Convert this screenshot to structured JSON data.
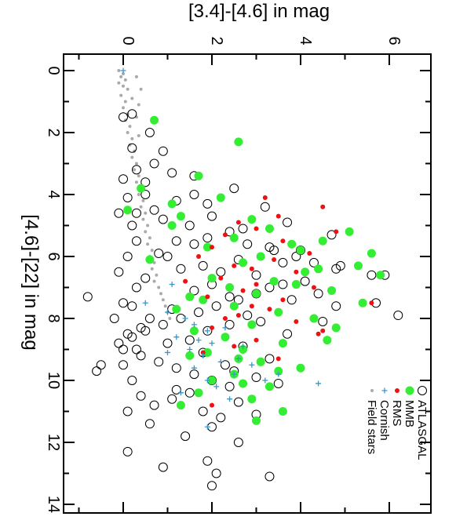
{
  "chart_data": {
    "type": "scatter",
    "title": "",
    "xlabel": "[4.6]-[22] in mag",
    "ylabel": "[3.4]-[4.6] in mag",
    "xlim": [
      -0.5,
      15
    ],
    "ylim": [
      -1.0,
      7.0
    ],
    "x_ticks": [
      "0",
      "2",
      "4",
      "6",
      "8",
      "10",
      "12",
      "14"
    ],
    "y_ticks": [
      "0",
      "2",
      "4",
      "6"
    ],
    "grid": false,
    "legend_position": "bottom-right",
    "orientation": "rotated 90 degrees clockwise",
    "legend": [
      {
        "label": "ATLASGAL",
        "marker": "open-circle",
        "color": "#000000"
      },
      {
        "label": "MMB",
        "marker": "filled-circle",
        "color": "#33ee33"
      },
      {
        "label": "RMS",
        "marker": "filled-dot",
        "color": "#ee1111"
      },
      {
        "label": "Cornish",
        "marker": "plus",
        "color": "#3399cc"
      },
      {
        "label": "Field stars",
        "marker": "small-dot",
        "color": "#aaaaaa"
      }
    ],
    "series": [
      {
        "name": "ATLASGAL",
        "marker": "open-circle",
        "color": "#000000",
        "points": [
          [
            1.4,
            0.2
          ],
          [
            2.0,
            0.6
          ],
          [
            2.6,
            0.9
          ],
          [
            3.0,
            0.7
          ],
          [
            3.3,
            1.1
          ],
          [
            3.6,
            0.5
          ],
          [
            4.0,
            1.6
          ],
          [
            4.3,
            1.9
          ],
          [
            4.6,
            0.3
          ],
          [
            4.8,
            0.9
          ],
          [
            5.0,
            1.5
          ],
          [
            5.2,
            2.4
          ],
          [
            5.4,
            1.9
          ],
          [
            5.6,
            2.8
          ],
          [
            5.8,
            3.4
          ],
          [
            6.0,
            3.9
          ],
          [
            6.2,
            4.3
          ],
          [
            6.4,
            4.8
          ],
          [
            6.6,
            5.6
          ],
          [
            6.8,
            4.1
          ],
          [
            7.0,
            3.3
          ],
          [
            7.2,
            3.0
          ],
          [
            7.4,
            2.6
          ],
          [
            7.6,
            2.1
          ],
          [
            7.8,
            1.7
          ],
          [
            8.0,
            1.3
          ],
          [
            8.2,
            0.9
          ],
          [
            8.4,
            0.5
          ],
          [
            8.6,
            0.2
          ],
          [
            8.8,
            -0.1
          ],
          [
            9.0,
            0.0
          ],
          [
            9.2,
            0.4
          ],
          [
            9.4,
            0.8
          ],
          [
            9.6,
            1.2
          ],
          [
            9.8,
            1.6
          ],
          [
            10.0,
            2.0
          ],
          [
            10.2,
            2.4
          ],
          [
            10.4,
            1.5
          ],
          [
            10.6,
            1.1
          ],
          [
            10.8,
            0.7
          ],
          [
            11.0,
            1.8
          ],
          [
            11.2,
            2.2
          ],
          [
            11.4,
            0.6
          ],
          [
            11.5,
            2.0
          ],
          [
            11.8,
            1.4
          ],
          [
            12.0,
            2.6
          ],
          [
            12.3,
            0.1
          ],
          [
            12.6,
            1.9
          ],
          [
            12.8,
            0.9
          ],
          [
            13.0,
            2.1
          ],
          [
            13.1,
            3.3
          ],
          [
            13.4,
            2.0
          ],
          [
            9.5,
            -0.5
          ],
          [
            9.7,
            -0.6
          ],
          [
            7.3,
            -0.8
          ],
          [
            4.6,
            -0.1
          ],
          [
            6.3,
            4.9
          ],
          [
            6.6,
            5.9
          ],
          [
            7.5,
            5.7
          ],
          [
            7.9,
            6.2
          ],
          [
            5.3,
            4.7
          ],
          [
            4.9,
            3.7
          ],
          [
            4.4,
            3.2
          ],
          [
            5.7,
            3.3
          ],
          [
            6.9,
            3.6
          ],
          [
            8.1,
            3.1
          ],
          [
            8.5,
            3.7
          ],
          [
            8.9,
            2.7
          ],
          [
            9.3,
            3.3
          ],
          [
            9.9,
            3.0
          ],
          [
            10.1,
            3.5
          ],
          [
            10.7,
            2.6
          ],
          [
            11.1,
            3.0
          ],
          [
            6.1,
            2.6
          ],
          [
            6.5,
            2.2
          ],
          [
            7.1,
            1.6
          ],
          [
            7.7,
            1.1
          ],
          [
            8.3,
            0.4
          ],
          [
            6.7,
            0.5
          ],
          [
            5.9,
            0.8
          ],
          [
            5.5,
            1.2
          ],
          [
            6.0,
            1.0
          ],
          [
            6.4,
            1.3
          ],
          [
            7.6,
            0.2
          ],
          [
            8.0,
            0.6
          ],
          [
            8.7,
            1.5
          ],
          [
            9.1,
            1.8
          ],
          [
            9.5,
            2.3
          ],
          [
            5.1,
            2.7
          ],
          [
            4.7,
            2.0
          ],
          [
            4.2,
            1.2
          ],
          [
            3.8,
            2.5
          ],
          [
            3.4,
            1.6
          ],
          [
            7.2,
            4.4
          ],
          [
            7.6,
            4.8
          ],
          [
            8.1,
            4.5
          ],
          [
            5.8,
            4.0
          ],
          [
            6.2,
            3.6
          ],
          [
            6.6,
            3.0
          ],
          [
            7.4,
            3.8
          ],
          [
            1.5,
            0.0
          ],
          [
            2.5,
            0.2
          ],
          [
            3.2,
            0.3
          ],
          [
            3.5,
            0.0
          ],
          [
            4.1,
            0.1
          ],
          [
            5.0,
            0.2
          ],
          [
            5.5,
            0.3
          ],
          [
            6.0,
            0.1
          ],
          [
            6.5,
            -0.1
          ],
          [
            7.0,
            0.3
          ],
          [
            7.5,
            0.0
          ],
          [
            8.0,
            -0.2
          ],
          [
            8.5,
            0.1
          ],
          [
            9.0,
            0.3
          ],
          [
            9.5,
            0.0
          ],
          [
            10.0,
            0.2
          ],
          [
            10.5,
            0.4
          ],
          [
            11.0,
            0.1
          ],
          [
            8.8,
            1.0
          ],
          [
            8.4,
            1.9
          ],
          [
            8.2,
            2.4
          ],
          [
            7.9,
            2.8
          ],
          [
            9.7,
            2.5
          ],
          [
            10.3,
            1.2
          ],
          [
            6.9,
            2.0
          ],
          [
            7.3,
            2.4
          ],
          [
            6.3,
            1.8
          ],
          [
            5.6,
            1.6
          ],
          [
            4.5,
            0.7
          ],
          [
            4.0,
            0.5
          ]
        ]
      },
      {
        "name": "MMB",
        "marker": "filled-circle",
        "color": "#33ee33",
        "points": [
          [
            1.6,
            0.7
          ],
          [
            2.3,
            2.6
          ],
          [
            3.4,
            1.7
          ],
          [
            4.1,
            2.2
          ],
          [
            4.5,
            0.1
          ],
          [
            4.8,
            2.9
          ],
          [
            5.1,
            3.3
          ],
          [
            5.4,
            2.5
          ],
          [
            5.6,
            3.8
          ],
          [
            5.8,
            4.0
          ],
          [
            6.0,
            3.1
          ],
          [
            6.2,
            2.7
          ],
          [
            6.4,
            4.4
          ],
          [
            6.6,
            5.8
          ],
          [
            6.8,
            3.4
          ],
          [
            7.0,
            2.4
          ],
          [
            7.2,
            3.0
          ],
          [
            7.4,
            1.8
          ],
          [
            7.6,
            2.5
          ],
          [
            7.8,
            3.5
          ],
          [
            8.0,
            4.3
          ],
          [
            8.2,
            2.9
          ],
          [
            8.4,
            1.6
          ],
          [
            8.6,
            2.3
          ],
          [
            8.8,
            3.6
          ],
          [
            9.0,
            2.7
          ],
          [
            9.2,
            1.5
          ],
          [
            9.4,
            3.1
          ],
          [
            9.6,
            4.0
          ],
          [
            9.8,
            2.5
          ],
          [
            10.0,
            2.0
          ],
          [
            10.2,
            3.3
          ],
          [
            10.4,
            1.7
          ],
          [
            10.6,
            2.9
          ],
          [
            10.8,
            1.3
          ],
          [
            11.0,
            3.6
          ],
          [
            11.3,
            3.0
          ],
          [
            6.5,
            4.1
          ],
          [
            7.1,
            4.7
          ],
          [
            7.5,
            5.4
          ],
          [
            5.5,
            4.5
          ],
          [
            5.2,
            5.1
          ],
          [
            5.9,
            5.6
          ],
          [
            6.3,
            5.3
          ],
          [
            6.9,
            3.9
          ],
          [
            7.3,
            1.5
          ],
          [
            6.1,
            0.6
          ],
          [
            5.0,
            1.1
          ],
          [
            4.7,
            1.3
          ],
          [
            3.8,
            0.4
          ],
          [
            8.3,
            4.8
          ],
          [
            8.7,
            4.6
          ],
          [
            9.1,
            1.9
          ],
          [
            9.3,
            2.6
          ],
          [
            9.7,
            3.5
          ],
          [
            7.7,
            1.2
          ],
          [
            6.7,
            2.0
          ],
          [
            5.7,
            1.9
          ],
          [
            4.3,
            1.1
          ],
          [
            10.1,
            2.7
          ]
        ]
      },
      {
        "name": "RMS",
        "marker": "filled-dot",
        "color": "#ee1111",
        "points": [
          [
            4.1,
            3.2
          ],
          [
            4.4,
            4.5
          ],
          [
            4.9,
            2.6
          ],
          [
            5.1,
            3.0
          ],
          [
            5.3,
            2.3
          ],
          [
            5.5,
            3.6
          ],
          [
            5.7,
            2.0
          ],
          [
            5.9,
            4.2
          ],
          [
            6.1,
            3.4
          ],
          [
            6.3,
            2.5
          ],
          [
            6.5,
            3.9
          ],
          [
            6.7,
            2.2
          ],
          [
            6.9,
            3.0
          ],
          [
            7.1,
            2.7
          ],
          [
            7.3,
            1.9
          ],
          [
            7.5,
            5.6
          ],
          [
            7.7,
            3.3
          ],
          [
            7.9,
            2.6
          ],
          [
            8.1,
            3.9
          ],
          [
            8.3,
            2.0
          ],
          [
            8.5,
            4.4
          ],
          [
            8.7,
            3.0
          ],
          [
            8.9,
            2.5
          ],
          [
            9.1,
            1.8
          ],
          [
            9.3,
            3.5
          ],
          [
            10.8,
            2.0
          ],
          [
            6.0,
            1.7
          ],
          [
            6.8,
            1.4
          ],
          [
            7.4,
            3.6
          ],
          [
            8.0,
            2.3
          ],
          [
            5.2,
            4.8
          ],
          [
            4.7,
            3.5
          ],
          [
            6.4,
            2.9
          ],
          [
            7.0,
            4.3
          ],
          [
            7.6,
            2.9
          ],
          [
            8.4,
            4.5
          ]
        ]
      },
      {
        "name": "Cornish",
        "marker": "plus",
        "color": "#3399cc",
        "points": [
          [
            0.0,
            0.0
          ],
          [
            7.8,
            1.0
          ],
          [
            8.0,
            1.4
          ],
          [
            8.2,
            1.6
          ],
          [
            8.4,
            1.9
          ],
          [
            8.6,
            1.2
          ],
          [
            8.8,
            2.0
          ],
          [
            9.0,
            1.5
          ],
          [
            9.2,
            1.8
          ],
          [
            9.4,
            2.2
          ],
          [
            9.6,
            1.6
          ],
          [
            9.8,
            2.5
          ],
          [
            10.0,
            1.9
          ],
          [
            10.2,
            2.1
          ],
          [
            10.4,
            1.3
          ],
          [
            10.6,
            2.4
          ],
          [
            10.0,
            3.2
          ],
          [
            9.5,
            2.9
          ],
          [
            8.9,
            2.7
          ],
          [
            8.3,
            2.3
          ],
          [
            7.5,
            0.5
          ],
          [
            6.9,
            1.1
          ],
          [
            9.8,
            3.5
          ],
          [
            10.1,
            4.4
          ],
          [
            11.5,
            1.9
          ],
          [
            9.1,
            1.0
          ],
          [
            8.7,
            1.7
          ],
          [
            9.3,
            2.6
          ]
        ]
      },
      {
        "name": "Field stars",
        "marker": "small-dot",
        "color": "#aaaaaa",
        "points": [
          [
            0.0,
            -0.1
          ],
          [
            0.1,
            0.0
          ],
          [
            0.2,
            -0.05
          ],
          [
            0.3,
            0.05
          ],
          [
            0.4,
            -0.1
          ],
          [
            0.5,
            0.0
          ],
          [
            0.6,
            0.1
          ],
          [
            0.8,
            -0.05
          ],
          [
            1.0,
            0.05
          ],
          [
            1.2,
            0.0
          ],
          [
            1.4,
            0.1
          ],
          [
            1.6,
            0.05
          ],
          [
            1.8,
            0.15
          ],
          [
            2.0,
            0.1
          ],
          [
            2.2,
            0.2
          ],
          [
            2.4,
            0.15
          ],
          [
            2.6,
            0.25
          ],
          [
            2.8,
            0.2
          ],
          [
            3.0,
            0.3
          ],
          [
            3.2,
            0.25
          ],
          [
            3.4,
            0.35
          ],
          [
            3.6,
            0.3
          ],
          [
            3.8,
            0.4
          ],
          [
            4.0,
            0.35
          ],
          [
            4.2,
            0.45
          ],
          [
            4.4,
            0.4
          ],
          [
            4.6,
            0.5
          ],
          [
            4.8,
            0.45
          ],
          [
            5.0,
            0.55
          ],
          [
            5.2,
            0.5
          ],
          [
            5.4,
            0.6
          ],
          [
            5.6,
            0.55
          ],
          [
            5.8,
            0.65
          ],
          [
            6.0,
            0.6
          ],
          [
            6.2,
            0.7
          ],
          [
            6.4,
            0.65
          ],
          [
            6.6,
            0.75
          ],
          [
            6.8,
            0.7
          ],
          [
            7.0,
            0.8
          ],
          [
            7.2,
            0.85
          ],
          [
            7.4,
            0.9
          ],
          [
            7.6,
            0.95
          ],
          [
            7.8,
            1.0
          ],
          [
            8.0,
            1.05
          ],
          [
            0.2,
            0.3
          ],
          [
            0.6,
            0.4
          ],
          [
            1.1,
            0.35
          ],
          [
            0.9,
            0.2
          ],
          [
            1.5,
            0.3
          ],
          [
            2.1,
            0.35
          ]
        ]
      }
    ]
  }
}
